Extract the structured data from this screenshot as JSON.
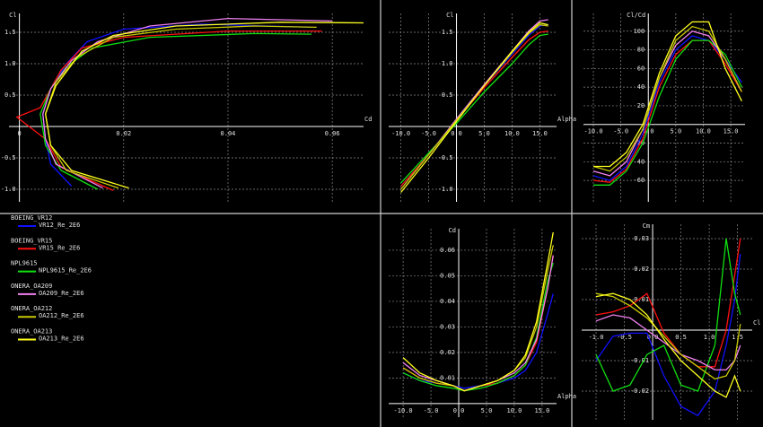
{
  "curves": [
    {
      "foil": "BOEING_VR12",
      "name": "VR12_Re_2E6",
      "color": "#1010ff"
    },
    {
      "foil": "BOEING_VR15",
      "name": "VR15_Re_2E6",
      "color": "#ff1010"
    },
    {
      "foil": "NPL9615",
      "name": "NPL9615_Re_2E6",
      "color": "#10e010"
    },
    {
      "foil": "ONERA_OA209",
      "name": "OA209_Re_2E6",
      "color": "#f080f0"
    },
    {
      "foil": "ONERA_OA212",
      "name": "OA212_Re_2E6",
      "color": "#c8c800"
    },
    {
      "foil": "ONERA_OA213",
      "name": "OA213_Re_2E6",
      "color": "#ffff20"
    }
  ],
  "chart_data": [
    {
      "type": "line",
      "x_label": "Cd",
      "y_label": "Cl",
      "xlim": [
        -0.002,
        0.066
      ],
      "ylim": [
        -1.2,
        1.8
      ],
      "xticks": [
        0,
        0.02,
        0.04,
        0.06
      ],
      "yticks": [
        {
          "value": 1.5,
          "label": "1.5"
        },
        {
          "value": 1.0,
          "label": "1.0"
        },
        {
          "value": 0.5,
          "label": "0.5"
        },
        {
          "value": -0.5,
          "label": "-0.5"
        },
        {
          "value": -1.0,
          "label": "-1.0"
        }
      ],
      "series": [
        {
          "x": [
            0.01,
            0.006,
            0.005,
            0.0045,
            0.006,
            0.009,
            0.013,
            0.02,
            0.035,
            0.056
          ],
          "values": [
            -0.95,
            -0.6,
            -0.2,
            0.2,
            0.6,
            1.0,
            1.35,
            1.55,
            1.63,
            1.58
          ]
        },
        {
          "x": [
            0.018,
            0.008,
            0.005,
            -0.0005,
            0.004,
            0.008,
            0.012,
            0.02,
            0.04,
            0.058
          ],
          "values": [
            -1.02,
            -0.65,
            -0.2,
            0.15,
            0.3,
            0.9,
            1.25,
            1.42,
            1.52,
            1.52
          ]
        },
        {
          "x": [
            0.015,
            0.008,
            0.005,
            0.004,
            0.006,
            0.009,
            0.014,
            0.025,
            0.045,
            0.056
          ],
          "values": [
            -1.0,
            -0.7,
            -0.3,
            0.2,
            0.6,
            0.95,
            1.25,
            1.42,
            1.48,
            1.47
          ]
        },
        {
          "x": [
            0.016,
            0.007,
            0.005,
            0.0045,
            0.006,
            0.01,
            0.015,
            0.025,
            0.04,
            0.06
          ],
          "values": [
            -0.98,
            -0.6,
            -0.2,
            0.2,
            0.6,
            1.05,
            1.35,
            1.6,
            1.72,
            1.68
          ]
        },
        {
          "x": [
            0.019,
            0.009,
            0.006,
            0.005,
            0.007,
            0.011,
            0.018,
            0.03,
            0.045,
            0.057
          ],
          "values": [
            -0.98,
            -0.7,
            -0.3,
            0.2,
            0.7,
            1.1,
            1.42,
            1.55,
            1.6,
            1.58
          ]
        },
        {
          "x": [
            0.021,
            0.01,
            0.006,
            0.005,
            0.007,
            0.012,
            0.018,
            0.03,
            0.05,
            0.066
          ],
          "values": [
            -0.98,
            -0.7,
            -0.3,
            0.2,
            0.65,
            1.2,
            1.45,
            1.6,
            1.66,
            1.65
          ]
        }
      ]
    },
    {
      "type": "line",
      "x_label": "Alpha",
      "y_label": "Cl",
      "xlim": [
        -12.2,
        18
      ],
      "ylim": [
        -1.2,
        1.8
      ],
      "xticks": [
        {
          "value": -10,
          "label": "-10.0"
        },
        {
          "value": -5,
          "label": "-5.0"
        },
        {
          "value": 0,
          "label": "0.0"
        },
        {
          "value": 5,
          "label": "5.0"
        },
        {
          "value": 10,
          "label": "10.0"
        },
        {
          "value": 15,
          "label": "15.0"
        }
      ],
      "yticks": [
        {
          "value": 1.5,
          "label": "1.5"
        },
        {
          "value": 1.0,
          "label": "1.0"
        },
        {
          "value": 0.5,
          "label": "0.5"
        },
        {
          "value": -0.5,
          "label": "-0.5"
        },
        {
          "value": -1.0,
          "label": "-1.0"
        }
      ],
      "x": [
        -10,
        -5,
        0,
        5,
        10,
        13,
        15,
        16.5
      ],
      "series": [
        {
          "values": [
            -0.95,
            -0.45,
            0.1,
            0.65,
            1.15,
            1.45,
            1.6,
            1.62
          ]
        },
        {
          "values": [
            -0.95,
            -0.45,
            0.1,
            0.62,
            1.1,
            1.38,
            1.5,
            1.52
          ]
        },
        {
          "values": [
            -0.9,
            -0.42,
            0.05,
            0.55,
            1.0,
            1.3,
            1.45,
            1.47
          ]
        },
        {
          "values": [
            -1.0,
            -0.45,
            0.12,
            0.67,
            1.2,
            1.52,
            1.68,
            1.7
          ]
        },
        {
          "values": [
            -1.0,
            -0.45,
            0.1,
            0.65,
            1.18,
            1.48,
            1.62,
            1.6
          ]
        },
        {
          "values": [
            -1.05,
            -0.5,
            0.08,
            0.65,
            1.2,
            1.5,
            1.65,
            1.62
          ]
        }
      ]
    },
    {
      "type": "line",
      "y_label": "Cl/Cd",
      "xlim": [
        -11.8,
        17.6
      ],
      "ylim": [
        -83,
        119
      ],
      "xticks": [
        {
          "value": -10,
          "label": "-10.0"
        },
        {
          "value": -5,
          "label": "-5.0"
        },
        {
          "value": 0,
          "label": "0.0"
        },
        {
          "value": 5,
          "label": "5.0"
        },
        {
          "value": 10,
          "label": "10.0"
        },
        {
          "value": 15,
          "label": "15.0"
        }
      ],
      "yticks": [
        100,
        80,
        60,
        40,
        20,
        -20,
        -40,
        -60
      ],
      "x": [
        -10,
        -7,
        -4,
        -1,
        2,
        5,
        8,
        11,
        14,
        17
      ],
      "series": [
        {
          "values": [
            -55,
            -60,
            -45,
            -10,
            45,
            80,
            95,
            90,
            70,
            45
          ]
        },
        {
          "values": [
            -60,
            -62,
            -48,
            -15,
            40,
            75,
            90,
            90,
            65,
            35
          ]
        },
        {
          "values": [
            -65,
            -65,
            -50,
            -20,
            30,
            70,
            90,
            90,
            75,
            40
          ]
        },
        {
          "values": [
            -50,
            -55,
            -40,
            -5,
            50,
            85,
            100,
            95,
            70,
            35
          ]
        },
        {
          "values": [
            -45,
            -50,
            -35,
            -5,
            50,
            90,
            105,
            100,
            70,
            35
          ]
        },
        {
          "values": [
            -45,
            -45,
            -30,
            0,
            55,
            95,
            110,
            110,
            60,
            25
          ]
        }
      ]
    },
    {
      "type": "line",
      "x_label": "Alpha",
      "y_label": "Cd",
      "xlim": [
        -12.6,
        17.6
      ],
      "ylim": [
        -0.0053,
        0.0684
      ],
      "xticks": [
        {
          "value": -10,
          "label": "-10.0"
        },
        {
          "value": -5,
          "label": "-5.0"
        },
        {
          "value": 0,
          "label": "0.0"
        },
        {
          "value": 5,
          "label": "5.0"
        },
        {
          "value": 10,
          "label": "10.0"
        },
        {
          "value": 15,
          "label": "15.0"
        }
      ],
      "yticks": [
        0.06,
        0.05,
        0.04,
        0.03,
        0.02,
        0.01
      ],
      "x": [
        -10,
        -7,
        -4,
        -1,
        1,
        4,
        7,
        10,
        12,
        14,
        16,
        17
      ],
      "series": [
        {
          "values": [
            0.012,
            0.009,
            0.008,
            0.007,
            0.006,
            0.007,
            0.008,
            0.01,
            0.013,
            0.02,
            0.035,
            0.043
          ]
        },
        {
          "values": [
            0.014,
            0.01,
            0.008,
            0.007,
            0.005,
            0.007,
            0.008,
            0.011,
            0.015,
            0.024,
            0.045,
            0.058
          ]
        },
        {
          "values": [
            0.012,
            0.009,
            0.007,
            0.006,
            0.005,
            0.006,
            0.008,
            0.011,
            0.015,
            0.026,
            0.048,
            0.055
          ]
        },
        {
          "values": [
            0.016,
            0.011,
            0.009,
            0.007,
            0.005,
            0.007,
            0.009,
            0.012,
            0.016,
            0.025,
            0.045,
            0.058
          ]
        },
        {
          "values": [
            0.014,
            0.01,
            0.008,
            0.007,
            0.005,
            0.007,
            0.009,
            0.013,
            0.018,
            0.03,
            0.052,
            0.062
          ]
        },
        {
          "values": [
            0.018,
            0.012,
            0.009,
            0.007,
            0.005,
            0.007,
            0.009,
            0.013,
            0.019,
            0.032,
            0.055,
            0.067
          ]
        }
      ]
    },
    {
      "type": "line",
      "x_label": "Cl",
      "y_label": "Cm",
      "xlim": [
        -1.254,
        1.76
      ],
      "ylim": [
        -0.0294,
        0.0347
      ],
      "xticks": [
        {
          "value": -1,
          "label": "-1.0"
        },
        {
          "value": -0.5,
          "label": "-0.5"
        },
        {
          "value": 0,
          "label": "0.0"
        },
        {
          "value": 0.5,
          "label": "0.5"
        },
        {
          "value": 1,
          "label": "1.0"
        },
        {
          "value": 1.5,
          "label": "1.5"
        }
      ],
      "yticks": [
        0.03,
        0.02,
        0.01,
        -0.01,
        -0.02
      ],
      "x": [
        -1.0,
        -0.7,
        -0.4,
        -0.1,
        0.2,
        0.5,
        0.8,
        1.1,
        1.3,
        1.45,
        1.55
      ],
      "series": [
        {
          "values": [
            -0.01,
            -0.002,
            -0.001,
            -0.001,
            -0.015,
            -0.025,
            -0.028,
            -0.02,
            -0.005,
            0.01,
            0.025
          ]
        },
        {
          "values": [
            0.005,
            0.006,
            0.008,
            0.012,
            -0.001,
            -0.008,
            -0.012,
            -0.012,
            0.0,
            0.018,
            0.03
          ]
        },
        {
          "values": [
            -0.008,
            -0.02,
            -0.018,
            -0.008,
            -0.005,
            -0.018,
            -0.02,
            -0.005,
            0.03,
            0.012,
            0.005
          ]
        },
        {
          "values": [
            0.003,
            0.005,
            0.004,
            0.0,
            -0.004,
            -0.008,
            -0.01,
            -0.013,
            -0.013,
            -0.01,
            -0.005
          ]
        },
        {
          "values": [
            0.012,
            0.011,
            0.008,
            0.004,
            -0.002,
            -0.008,
            -0.012,
            -0.016,
            -0.015,
            -0.01,
            0.002
          ]
        },
        {
          "values": [
            0.011,
            0.012,
            0.01,
            0.005,
            -0.003,
            -0.01,
            -0.015,
            -0.02,
            -0.022,
            -0.015,
            -0.02
          ]
        }
      ]
    }
  ]
}
